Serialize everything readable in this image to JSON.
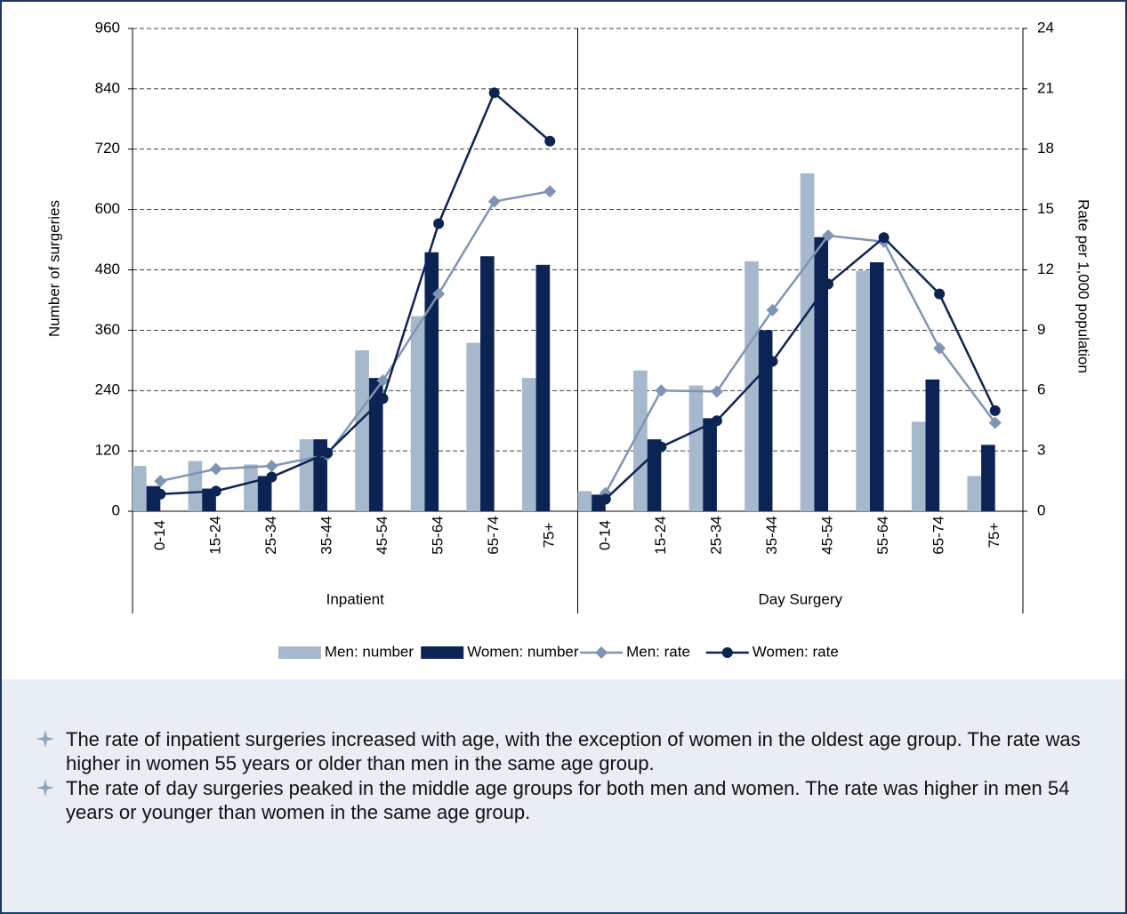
{
  "chart_data": {
    "type": "bar",
    "ylabel": "Number of surgeries",
    "y2label": "Rate per 1,000 population",
    "ylim": [
      0,
      960
    ],
    "yticks": [
      0,
      120,
      240,
      360,
      480,
      600,
      720,
      840,
      960
    ],
    "y2lim": [
      0,
      24
    ],
    "y2ticks": [
      0,
      3,
      6,
      9,
      12,
      15,
      18,
      21,
      24
    ],
    "grid": true,
    "groups": [
      {
        "label": "Inpatient",
        "categories": [
          "0-14",
          "15-24",
          "25-34",
          "35-44",
          "45-54",
          "55-64",
          "65-74",
          "75+"
        ]
      },
      {
        "label": "Day Surgery",
        "categories": [
          "0-14",
          "15-24",
          "25-34",
          "35-44",
          "45-54",
          "55-64",
          "65-74",
          "75+"
        ]
      }
    ],
    "series": [
      {
        "name": "Men: number",
        "kind": "bar",
        "color": "#a6b8cb",
        "values": [
          [
            90,
            100,
            93,
            143,
            320,
            388,
            335,
            265
          ],
          [
            40,
            280,
            250,
            497,
            672,
            478,
            178,
            70
          ]
        ]
      },
      {
        "name": "Women: number",
        "kind": "bar",
        "color": "#0c2454",
        "values": [
          [
            50,
            45,
            70,
            143,
            265,
            515,
            507,
            490
          ],
          [
            33,
            143,
            185,
            360,
            545,
            495,
            262,
            132
          ]
        ]
      },
      {
        "name": "Men: rate",
        "kind": "line",
        "marker": "diamond",
        "axis": "y2",
        "color": "#7f95b3",
        "values": [
          [
            1.5,
            2.1,
            2.25,
            2.8,
            6.5,
            10.8,
            15.4,
            15.9
          ],
          [
            0.9,
            6.0,
            5.95,
            10.0,
            13.7,
            13.4,
            8.1,
            4.4
          ]
        ]
      },
      {
        "name": "Women: rate",
        "kind": "line",
        "marker": "circle",
        "axis": "y2",
        "color": "#0c2454",
        "values": [
          [
            0.85,
            1.0,
            1.7,
            2.9,
            5.6,
            14.3,
            20.8,
            18.4
          ],
          [
            0.6,
            3.2,
            4.5,
            7.45,
            11.3,
            13.6,
            10.8,
            5.0
          ]
        ]
      }
    ]
  },
  "notes": [
    "The rate of inpatient surgeries increased with age, with the exception of women in the oldest age group. The rate was higher in women 55 years or older than men in the same age group.",
    "The rate of day surgeries peaked in the middle age groups for both men and women. The rate was higher in men 54 years or younger than women in the same age group."
  ]
}
